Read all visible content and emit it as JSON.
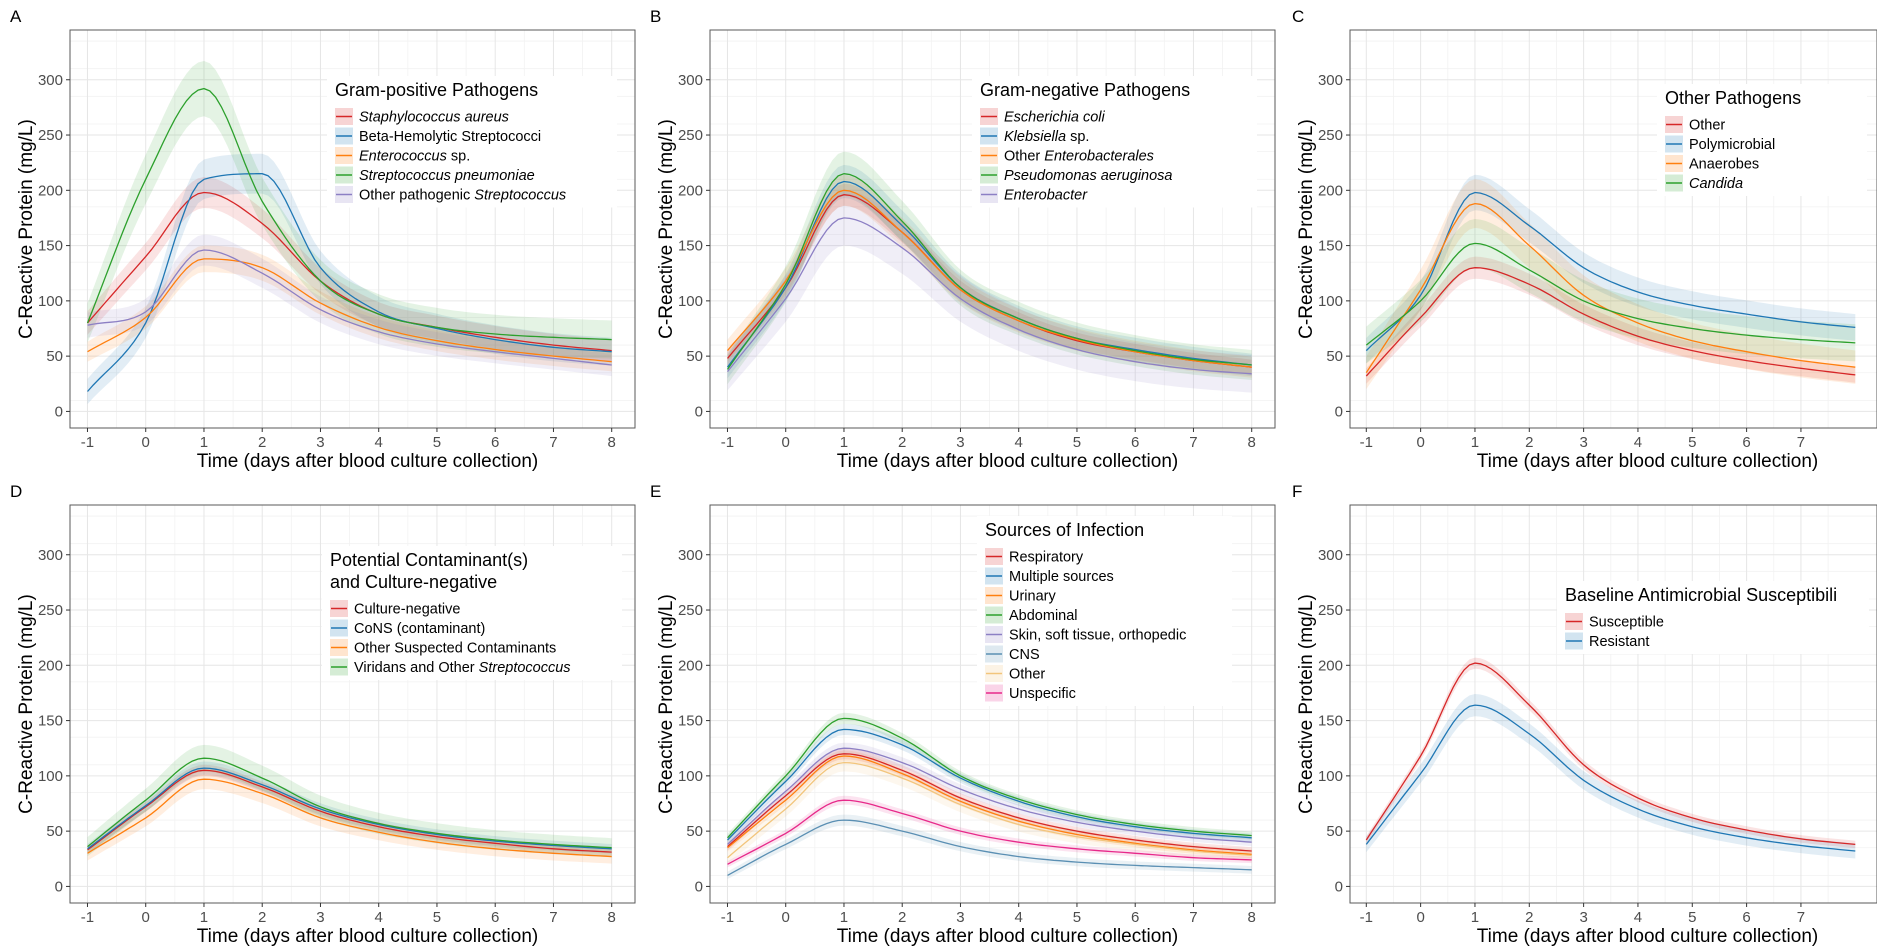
{
  "chart_data": [
    {
      "panel": "A",
      "type": "line",
      "xlabel": "Time (days after blood culture collection)",
      "ylabel": "C-Reactive Protein (mg/L)",
      "x_ticks": [
        -1,
        0,
        1,
        2,
        3,
        4,
        5,
        6,
        7,
        8
      ],
      "y_ticks": [
        0,
        50,
        100,
        150,
        200,
        250,
        300
      ],
      "xlim": [
        -1.3,
        8.4
      ],
      "ylim": [
        -15,
        345
      ],
      "legend": {
        "title": "Gram-positive Pathogens",
        "position": "top-right"
      },
      "x": [
        -1,
        0,
        1,
        2,
        3,
        4,
        5,
        6,
        7,
        8
      ],
      "series": [
        {
          "name": "Staphylococcus aureus",
          "italic": true,
          "color": "#d62728",
          "values": [
            80,
            140,
            198,
            170,
            118,
            88,
            76,
            67,
            60,
            55
          ],
          "band": 14
        },
        {
          "name": "Beta-Hemolytic Streptococci",
          "color": "#1f77b4",
          "values": [
            18,
            80,
            210,
            215,
            130,
            90,
            75,
            65,
            58,
            54
          ],
          "band": 18
        },
        {
          "name": "Enterococcus sp.",
          "name_italic_part": "Enterococcus",
          "name_rest": " sp.",
          "color": "#ff7f0e",
          "values": [
            54,
            85,
            138,
            130,
            98,
            76,
            64,
            56,
            50,
            45
          ],
          "band": 12
        },
        {
          "name": "Streptococcus pneumoniae",
          "italic": true,
          "color": "#2ca02c",
          "values": [
            80,
            210,
            292,
            190,
            118,
            88,
            76,
            70,
            67,
            65
          ],
          "band": 25
        },
        {
          "name": "Other pathogenic Streptococcus",
          "name_plain_part": "Other pathogenic ",
          "name_italic_part": "Streptococcus",
          "color": "#8c7fc4",
          "values": [
            78,
            90,
            146,
            125,
            92,
            72,
            61,
            54,
            48,
            42
          ],
          "band": 14
        }
      ]
    },
    {
      "panel": "B",
      "type": "line",
      "xlabel": "Time (days after blood culture collection)",
      "ylabel": "C-Reactive Protein (mg/L)",
      "x_ticks": [
        -1,
        0,
        1,
        2,
        3,
        4,
        5,
        6,
        7,
        8
      ],
      "y_ticks": [
        0,
        50,
        100,
        150,
        200,
        250,
        300
      ],
      "xlim": [
        -1.3,
        8.4
      ],
      "ylim": [
        -15,
        345
      ],
      "legend": {
        "title": "Gram-negative Pathogens",
        "position": "top-right"
      },
      "x": [
        -1,
        0,
        1,
        2,
        3,
        4,
        5,
        6,
        7,
        8
      ],
      "series": [
        {
          "name": "Escherichia coli",
          "italic": true,
          "color": "#d62728",
          "values": [
            48,
            112,
            196,
            162,
            110,
            82,
            64,
            54,
            46,
            40
          ],
          "band": 10
        },
        {
          "name": "Klebsiella sp.",
          "name_italic_part": "Klebsiella",
          "name_rest": " sp.",
          "color": "#1f77b4",
          "values": [
            40,
            112,
            208,
            168,
            112,
            84,
            66,
            56,
            48,
            42
          ],
          "band": 15
        },
        {
          "name": "Other Enterobacterales",
          "name_plain_part": "Other ",
          "name_italic_part": "Enterobacterales",
          "color": "#ff7f0e",
          "values": [
            55,
            118,
            200,
            162,
            110,
            82,
            65,
            54,
            46,
            40
          ],
          "band": 14
        },
        {
          "name": "Pseudomonas aeruginosa",
          "italic": true,
          "color": "#2ca02c",
          "values": [
            38,
            115,
            215,
            172,
            112,
            84,
            66,
            55,
            47,
            42
          ],
          "band": 20
        },
        {
          "name": "Enterobacter",
          "italic": true,
          "color": "#8c7fc4",
          "values": [
            36,
            102,
            175,
            148,
            102,
            74,
            56,
            45,
            38,
            34
          ],
          "band": 25
        }
      ]
    },
    {
      "panel": "C",
      "type": "line",
      "xlabel": "Time (days after blood culture collection)",
      "ylabel": "C-Reactive Protein (mg/L)",
      "x_ticks": [
        -1,
        0,
        1,
        2,
        3,
        4,
        5,
        6,
        7
      ],
      "y_ticks": [
        0,
        50,
        100,
        150,
        200,
        250,
        300
      ],
      "xlim": [
        -1.3,
        8.4
      ],
      "ylim": [
        -15,
        345
      ],
      "legend": {
        "title": "Other Pathogens",
        "position": "top-right"
      },
      "x": [
        -1,
        0,
        1,
        2,
        3,
        4,
        5,
        6,
        7,
        8
      ],
      "series": [
        {
          "name": "Other",
          "color": "#d62728",
          "values": [
            32,
            85,
            130,
            115,
            88,
            68,
            55,
            46,
            39,
            33
          ],
          "band": 10
        },
        {
          "name": "Polymicrobial",
          "color": "#1f77b4",
          "values": [
            55,
            105,
            198,
            168,
            130,
            108,
            96,
            88,
            81,
            76
          ],
          "band": 16
        },
        {
          "name": "Anaerobes",
          "color": "#ff7f0e",
          "values": [
            35,
            110,
            188,
            150,
            105,
            80,
            64,
            54,
            46,
            40
          ],
          "band": 22
        },
        {
          "name": "Candida",
          "italic": true,
          "color": "#2ca02c",
          "values": [
            60,
            100,
            152,
            128,
            100,
            84,
            75,
            69,
            65,
            62
          ],
          "band": 22
        }
      ]
    },
    {
      "panel": "D",
      "type": "line",
      "xlabel": "Time (days after blood culture collection)",
      "ylabel": "C-Reactive Protein (mg/L)",
      "x_ticks": [
        -1,
        0,
        1,
        2,
        3,
        4,
        5,
        6,
        7,
        8
      ],
      "y_ticks": [
        0,
        50,
        100,
        150,
        200,
        250,
        300
      ],
      "xlim": [
        -1.3,
        8.4
      ],
      "ylim": [
        -15,
        345
      ],
      "legend": {
        "title": "Potential Contaminant(s)\nand Culture-negative",
        "position": "top-right"
      },
      "x": [
        -1,
        0,
        1,
        2,
        3,
        4,
        5,
        6,
        7,
        8
      ],
      "series": [
        {
          "name": "Culture-negative",
          "color": "#d62728",
          "values": [
            33,
            72,
            105,
            90,
            68,
            54,
            45,
            39,
            34,
            31
          ],
          "band": 5
        },
        {
          "name": "CoNS (contaminant)",
          "color": "#1f77b4",
          "values": [
            34,
            73,
            107,
            92,
            70,
            56,
            47,
            41,
            37,
            34
          ],
          "band": 6
        },
        {
          "name": "Other Suspected Contaminants",
          "color": "#ff7f0e",
          "values": [
            30,
            62,
            97,
            84,
            62,
            49,
            40,
            34,
            30,
            27
          ],
          "band": 9
        },
        {
          "name": "Viridans and Other Streptococcus",
          "name_plain_part": "Viridans and Other ",
          "name_italic_part": "Streptococcus",
          "color": "#2ca02c",
          "values": [
            36,
            78,
            116,
            98,
            72,
            57,
            48,
            42,
            38,
            35
          ],
          "band": 12
        }
      ]
    },
    {
      "panel": "E",
      "type": "line",
      "xlabel": "Time (days after blood culture collection)",
      "ylabel": "C-Reactive Protein (mg/L)",
      "x_ticks": [
        -1,
        0,
        1,
        2,
        3,
        4,
        5,
        6,
        7,
        8
      ],
      "y_ticks": [
        0,
        50,
        100,
        150,
        200,
        250,
        300
      ],
      "xlim": [
        -1.3,
        8.4
      ],
      "ylim": [
        -15,
        345
      ],
      "legend": {
        "title": "Sources of Infection",
        "position": "top-right"
      },
      "x": [
        -1,
        0,
        1,
        2,
        3,
        4,
        5,
        6,
        7,
        8
      ],
      "series": [
        {
          "name": "Respiratory",
          "color": "#d62728",
          "values": [
            36,
            82,
            120,
            105,
            80,
            62,
            50,
            42,
            36,
            32
          ],
          "band": 5
        },
        {
          "name": "Multiple sources",
          "color": "#1f77b4",
          "values": [
            42,
            95,
            142,
            128,
            98,
            77,
            63,
            54,
            48,
            44
          ],
          "band": 5
        },
        {
          "name": "Urinary",
          "color": "#ff7f0e",
          "values": [
            35,
            78,
            118,
            102,
            77,
            59,
            47,
            39,
            33,
            29
          ],
          "band": 5
        },
        {
          "name": "Abdominal",
          "color": "#2ca02c",
          "values": [
            44,
            100,
            152,
            134,
            100,
            79,
            65,
            56,
            50,
            46
          ],
          "band": 5
        },
        {
          "name": "Skin, soft tissue, orthopedic",
          "color": "#8c7fc4",
          "values": [
            38,
            86,
            125,
            112,
            88,
            70,
            58,
            50,
            44,
            40
          ],
          "band": 5
        },
        {
          "name": "CNS",
          "color": "#5a8fb3",
          "values": [
            10,
            38,
            60,
            50,
            36,
            27,
            22,
            19,
            17,
            15
          ],
          "band": 5
        },
        {
          "name": "Other",
          "color": "#f2c57c",
          "values": [
            26,
            70,
            112,
            98,
            74,
            56,
            45,
            38,
            32,
            28
          ],
          "band": 8
        },
        {
          "name": "Unspecific",
          "color": "#e7298a",
          "values": [
            20,
            48,
            78,
            66,
            50,
            40,
            34,
            30,
            26,
            24
          ],
          "band": 4
        }
      ]
    },
    {
      "panel": "F",
      "type": "line",
      "xlabel": "Time (days after blood culture collection)",
      "ylabel": "C-Reactive Protein (mg/L)",
      "x_ticks": [
        -1,
        0,
        1,
        2,
        3,
        4,
        5,
        6,
        7
      ],
      "y_ticks": [
        0,
        50,
        100,
        150,
        200,
        250,
        300
      ],
      "xlim": [
        -1.3,
        8.4
      ],
      "ylim": [
        -15,
        345
      ],
      "legend": {
        "title": "Baseline Antimicrobial Susceptibili",
        "position": "top-right"
      },
      "x": [
        -1,
        0,
        1,
        2,
        3,
        4,
        5,
        6,
        7,
        8
      ],
      "series": [
        {
          "name": "Susceptible",
          "color": "#d62728",
          "values": [
            42,
            118,
            202,
            164,
            110,
            80,
            62,
            51,
            43,
            38
          ],
          "band": 5
        },
        {
          "name": "Resistant",
          "color": "#1f77b4",
          "values": [
            38,
            102,
            164,
            138,
            96,
            70,
            54,
            44,
            37,
            32
          ],
          "band": 10
        }
      ]
    }
  ]
}
